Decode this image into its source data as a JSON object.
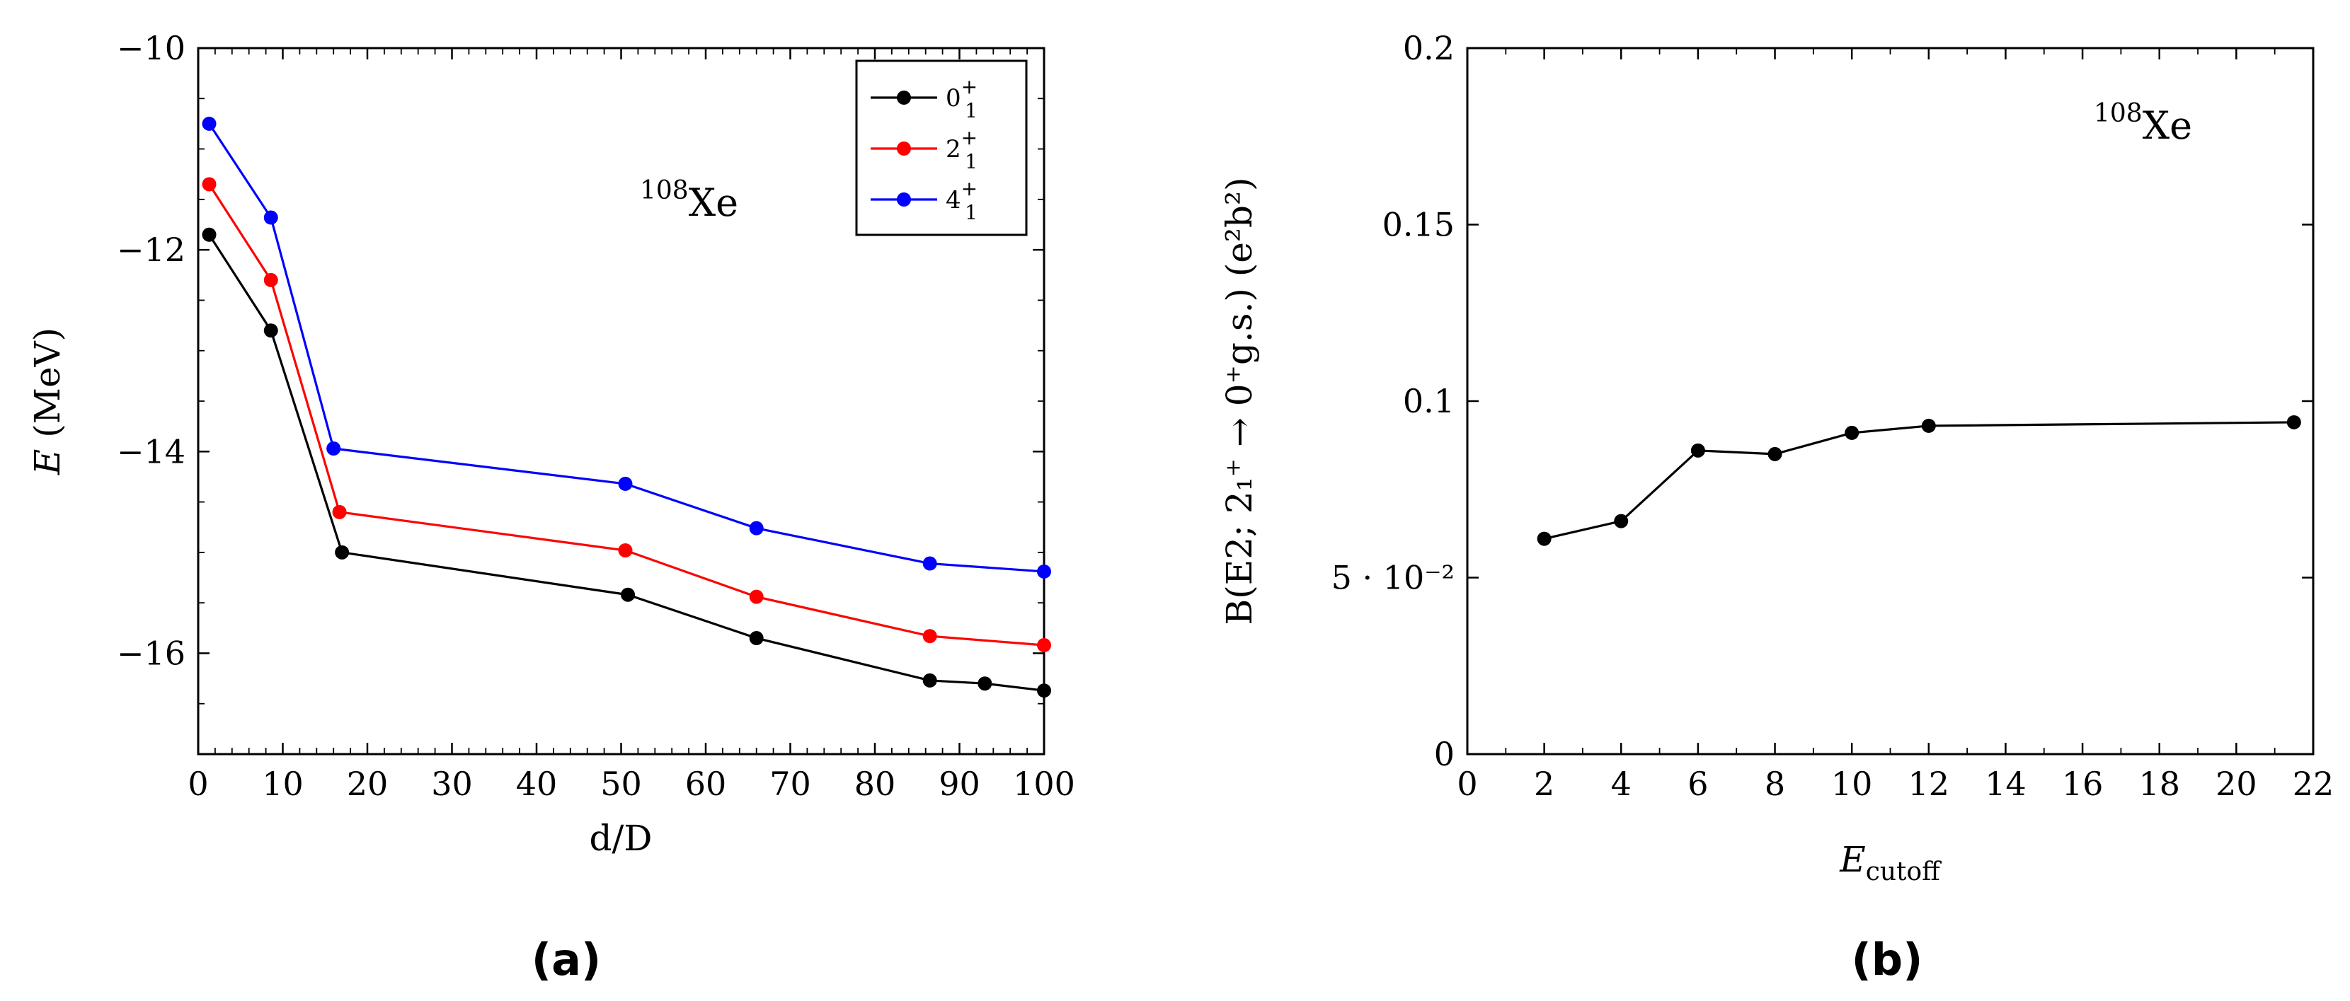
{
  "chart_data": [
    {
      "type": "line",
      "panel_label": "(a)",
      "title": "",
      "annotation": {
        "sup": "108",
        "text": "Xe"
      },
      "xlabel": "d/D",
      "ylabel": {
        "var": "E",
        "unit": "(MeV)"
      },
      "xlim": [
        0,
        100
      ],
      "ylim": [
        -17,
        -10
      ],
      "xticks": [
        0,
        10,
        20,
        30,
        40,
        50,
        60,
        70,
        80,
        90,
        100
      ],
      "yticks": [
        -10,
        -12,
        -14,
        -16
      ],
      "ytick_labels": [
        "−10",
        "−12",
        "−14",
        "−16"
      ],
      "legend": {
        "position": "top-right"
      },
      "series": [
        {
          "name": "0_1^+",
          "label_base": "0",
          "label_sub": "1",
          "label_sup": "+",
          "color": "#000000",
          "x": [
            1.3,
            8.6,
            17,
            50.8,
            66,
            86.5,
            93,
            100
          ],
          "y": [
            -11.85,
            -12.8,
            -15.0,
            -15.42,
            -15.85,
            -16.27,
            -16.3,
            -16.37
          ]
        },
        {
          "name": "2_1^+",
          "label_base": "2",
          "label_sub": "1",
          "label_sup": "+",
          "color": "#ff0000",
          "x": [
            1.3,
            8.6,
            16.7,
            50.5,
            66,
            86.5,
            100
          ],
          "y": [
            -11.35,
            -12.3,
            -14.6,
            -14.98,
            -15.44,
            -15.83,
            -15.92
          ]
        },
        {
          "name": "4_1^+",
          "label_base": "4",
          "label_sub": "1",
          "label_sup": "+",
          "color": "#0000ff",
          "x": [
            1.3,
            8.6,
            16,
            50.5,
            66,
            86.5,
            100
          ],
          "y": [
            -10.75,
            -11.68,
            -13.97,
            -14.32,
            -14.76,
            -15.11,
            -15.19
          ]
        }
      ]
    },
    {
      "type": "line",
      "panel_label": "(b)",
      "title": "",
      "annotation": {
        "sup": "108",
        "text": "Xe"
      },
      "xlabel": {
        "var": "E",
        "sub": "cutoff"
      },
      "ylabel": "B(E2; 2₁⁺ → 0⁺g.s.) (e²b²)",
      "xlim": [
        0,
        22
      ],
      "ylim": [
        0,
        0.2
      ],
      "xticks": [
        0,
        2,
        4,
        6,
        8,
        10,
        12,
        14,
        16,
        18,
        20,
        22
      ],
      "yticks": [
        0,
        0.05,
        0.1,
        0.15,
        0.2
      ],
      "ytick_labels": [
        "0",
        "5 · 10⁻²",
        "0.1",
        "0.15",
        "0.2"
      ],
      "series": [
        {
          "name": "B(E2)",
          "color": "#000000",
          "x": [
            2,
            4,
            6,
            8,
            10,
            12,
            21.5
          ],
          "y": [
            0.061,
            0.066,
            0.086,
            0.085,
            0.091,
            0.093,
            0.094
          ]
        }
      ]
    }
  ]
}
